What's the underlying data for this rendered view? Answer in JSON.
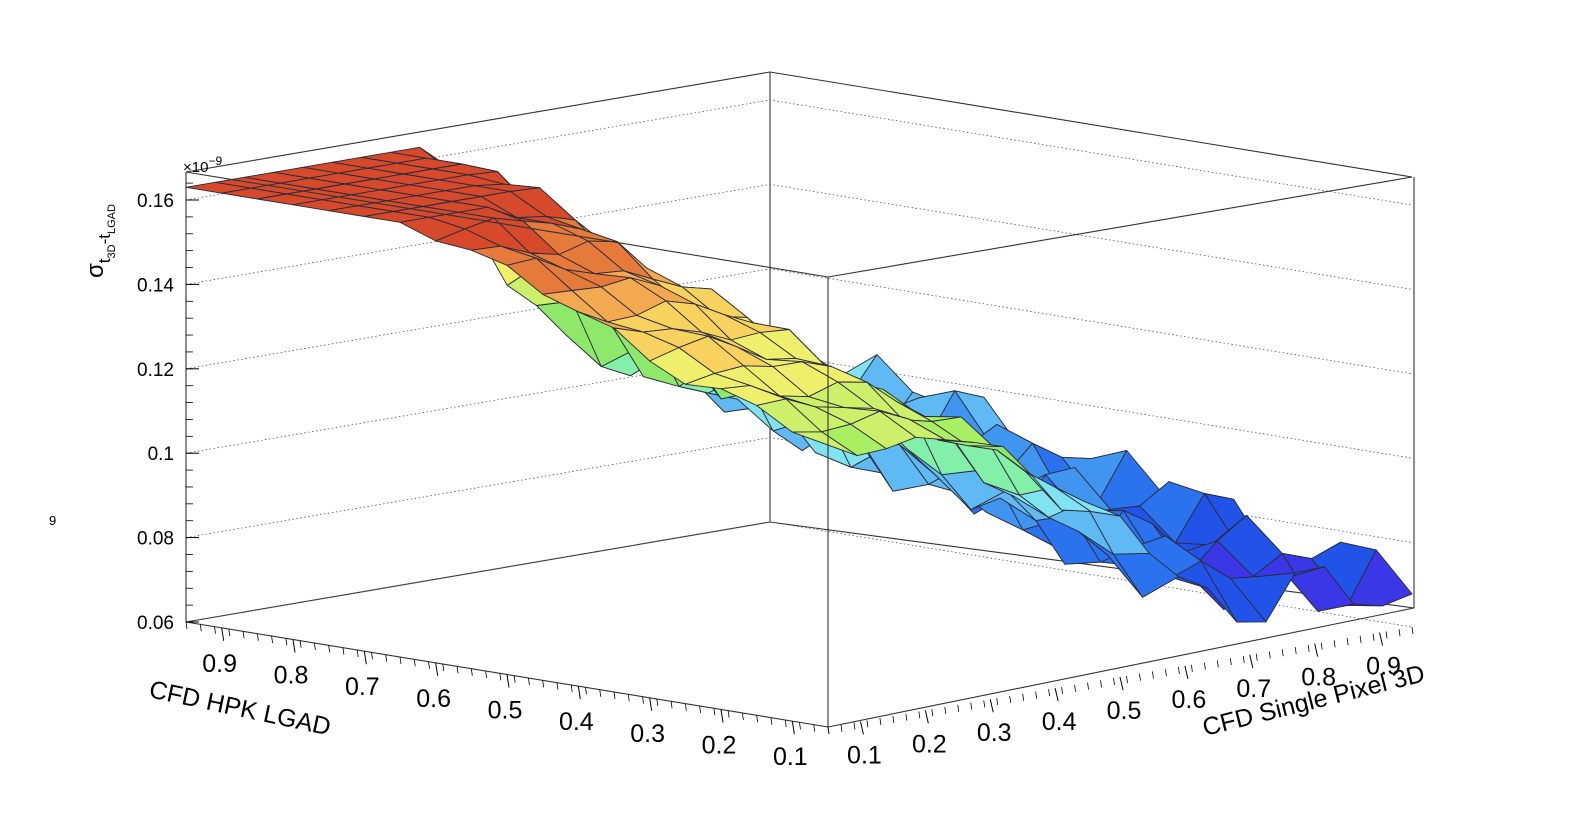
{
  "chart_data": {
    "type": "surface",
    "title": "",
    "xlabel": "CFD HPK LGAD",
    "ylabel": "CFD Single Pixel 3D",
    "zlabel": {
      "main": "σ",
      "sub": "t",
      "sub2a": "3D",
      "dash": "-t",
      "sub2b": "LGAD"
    },
    "z_exponent": "×10",
    "z_exponent_power": "−9",
    "x_ticks": [
      "0.9",
      "0.8",
      "0.7",
      "0.6",
      "0.5",
      "0.4",
      "0.3",
      "0.2",
      "0.1"
    ],
    "y_ticks": [
      "0.1",
      "0.2",
      "0.3",
      "0.4",
      "0.5",
      "0.6",
      "0.7",
      "0.8",
      "0.9"
    ],
    "z_ticks": [
      "0.06",
      "0.08",
      "0.1",
      "0.12",
      "0.14",
      "0.16"
    ],
    "zlim": [
      0.06,
      0.165
    ],
    "x_range": [
      0.05,
      0.95
    ],
    "y_range": [
      0.05,
      0.95
    ],
    "stray_text": "9",
    "palette": [
      "#5a1fc8",
      "#3b36e6",
      "#2153e8",
      "#2b73ee",
      "#3f95f0",
      "#5fbaf3",
      "#7fe3f1",
      "#82f0a8",
      "#8ee86a",
      "#a8ef63",
      "#cdf06a",
      "#eef06c",
      "#f7d25f",
      "#f3a94f",
      "#e57a3b",
      "#d6492a"
    ],
    "grid": true
  }
}
